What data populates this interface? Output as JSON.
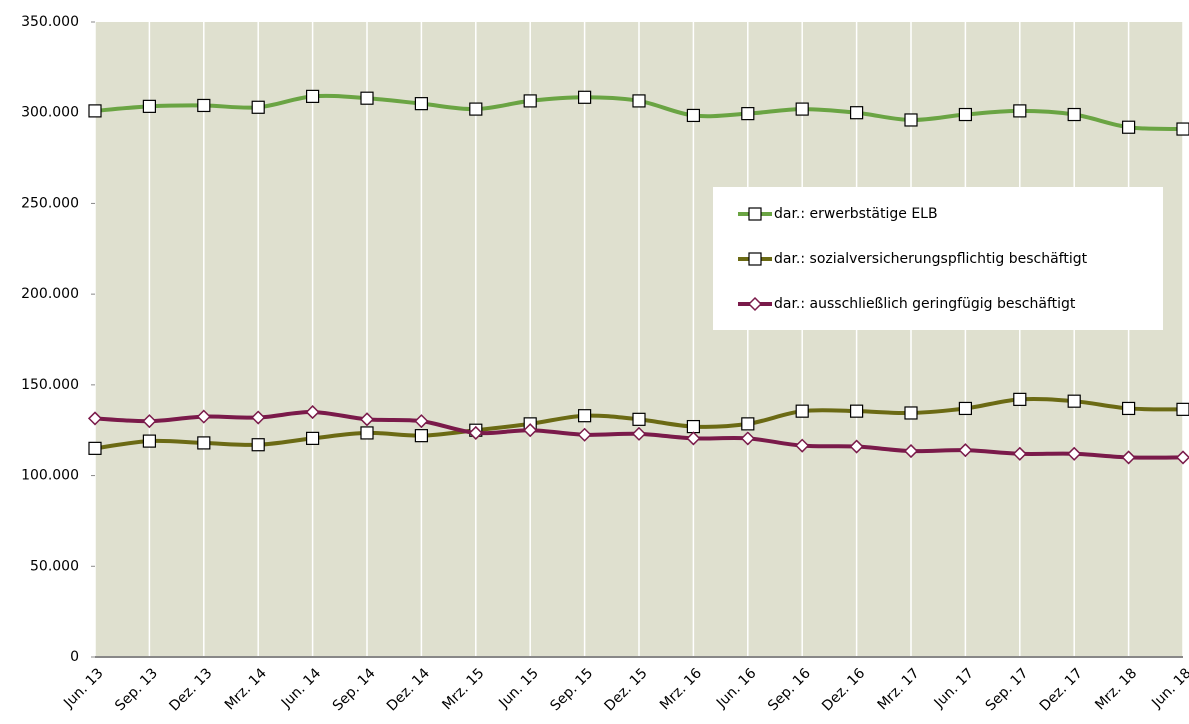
{
  "chart_data": {
    "type": "line",
    "categories": [
      "Jun. 13",
      "Sep. 13",
      "Dez. 13",
      "Mrz. 14",
      "Jun. 14",
      "Sep. 14",
      "Dez. 14",
      "Mrz. 15",
      "Jun. 15",
      "Sep. 15",
      "Dez. 15",
      "Mrz. 16",
      "Jun. 16",
      "Sep. 16",
      "Dez. 16",
      "Mrz. 17",
      "Jun. 17",
      "Sep. 17",
      "Dez. 17",
      "Mrz. 18",
      "Jun. 18"
    ],
    "series": [
      {
        "name": "dar.: erwerbstätige ELB",
        "color": "#6aa443",
        "marker": "square",
        "values": [
          301000,
          303500,
          304000,
          303000,
          309000,
          308000,
          305000,
          302000,
          306500,
          308500,
          306500,
          298500,
          299500,
          302000,
          300000,
          296000,
          299000,
          301000,
          299000,
          292000,
          291000
        ]
      },
      {
        "name": "dar.: sozialversicherungspflichtig beschäftigt",
        "color": "#6b6a14",
        "marker": "square",
        "values": [
          115000,
          119000,
          118000,
          117000,
          120500,
          123500,
          122000,
          125000,
          128500,
          133000,
          131000,
          127000,
          128500,
          135500,
          135500,
          134500,
          137000,
          142000,
          141000,
          137000,
          136500
        ]
      },
      {
        "name": "dar.: ausschließlich geringfügig beschäftigt",
        "color": "#7a1a4a",
        "marker": "diamond",
        "values": [
          131500,
          130000,
          132500,
          132000,
          135000,
          131000,
          130000,
          123500,
          125000,
          122500,
          123000,
          120500,
          120500,
          116500,
          116000,
          113500,
          114000,
          112000,
          112000,
          110000,
          110000
        ]
      }
    ],
    "ylim": [
      0,
      350000
    ],
    "yticks": [
      0,
      {
        "value": 50000,
        "label": "50.000"
      },
      {
        "value": 100000,
        "label": "100.000"
      },
      {
        "value": 150000,
        "label": "150.000"
      },
      {
        "value": 200000,
        "label": "200.000"
      },
      {
        "value": 250000,
        "label": "250.000"
      },
      {
        "value": 300000,
        "label": "300.000"
      },
      {
        "value": 350000,
        "label": "350.000"
      }
    ],
    "grid": "x",
    "legend": "center right"
  }
}
